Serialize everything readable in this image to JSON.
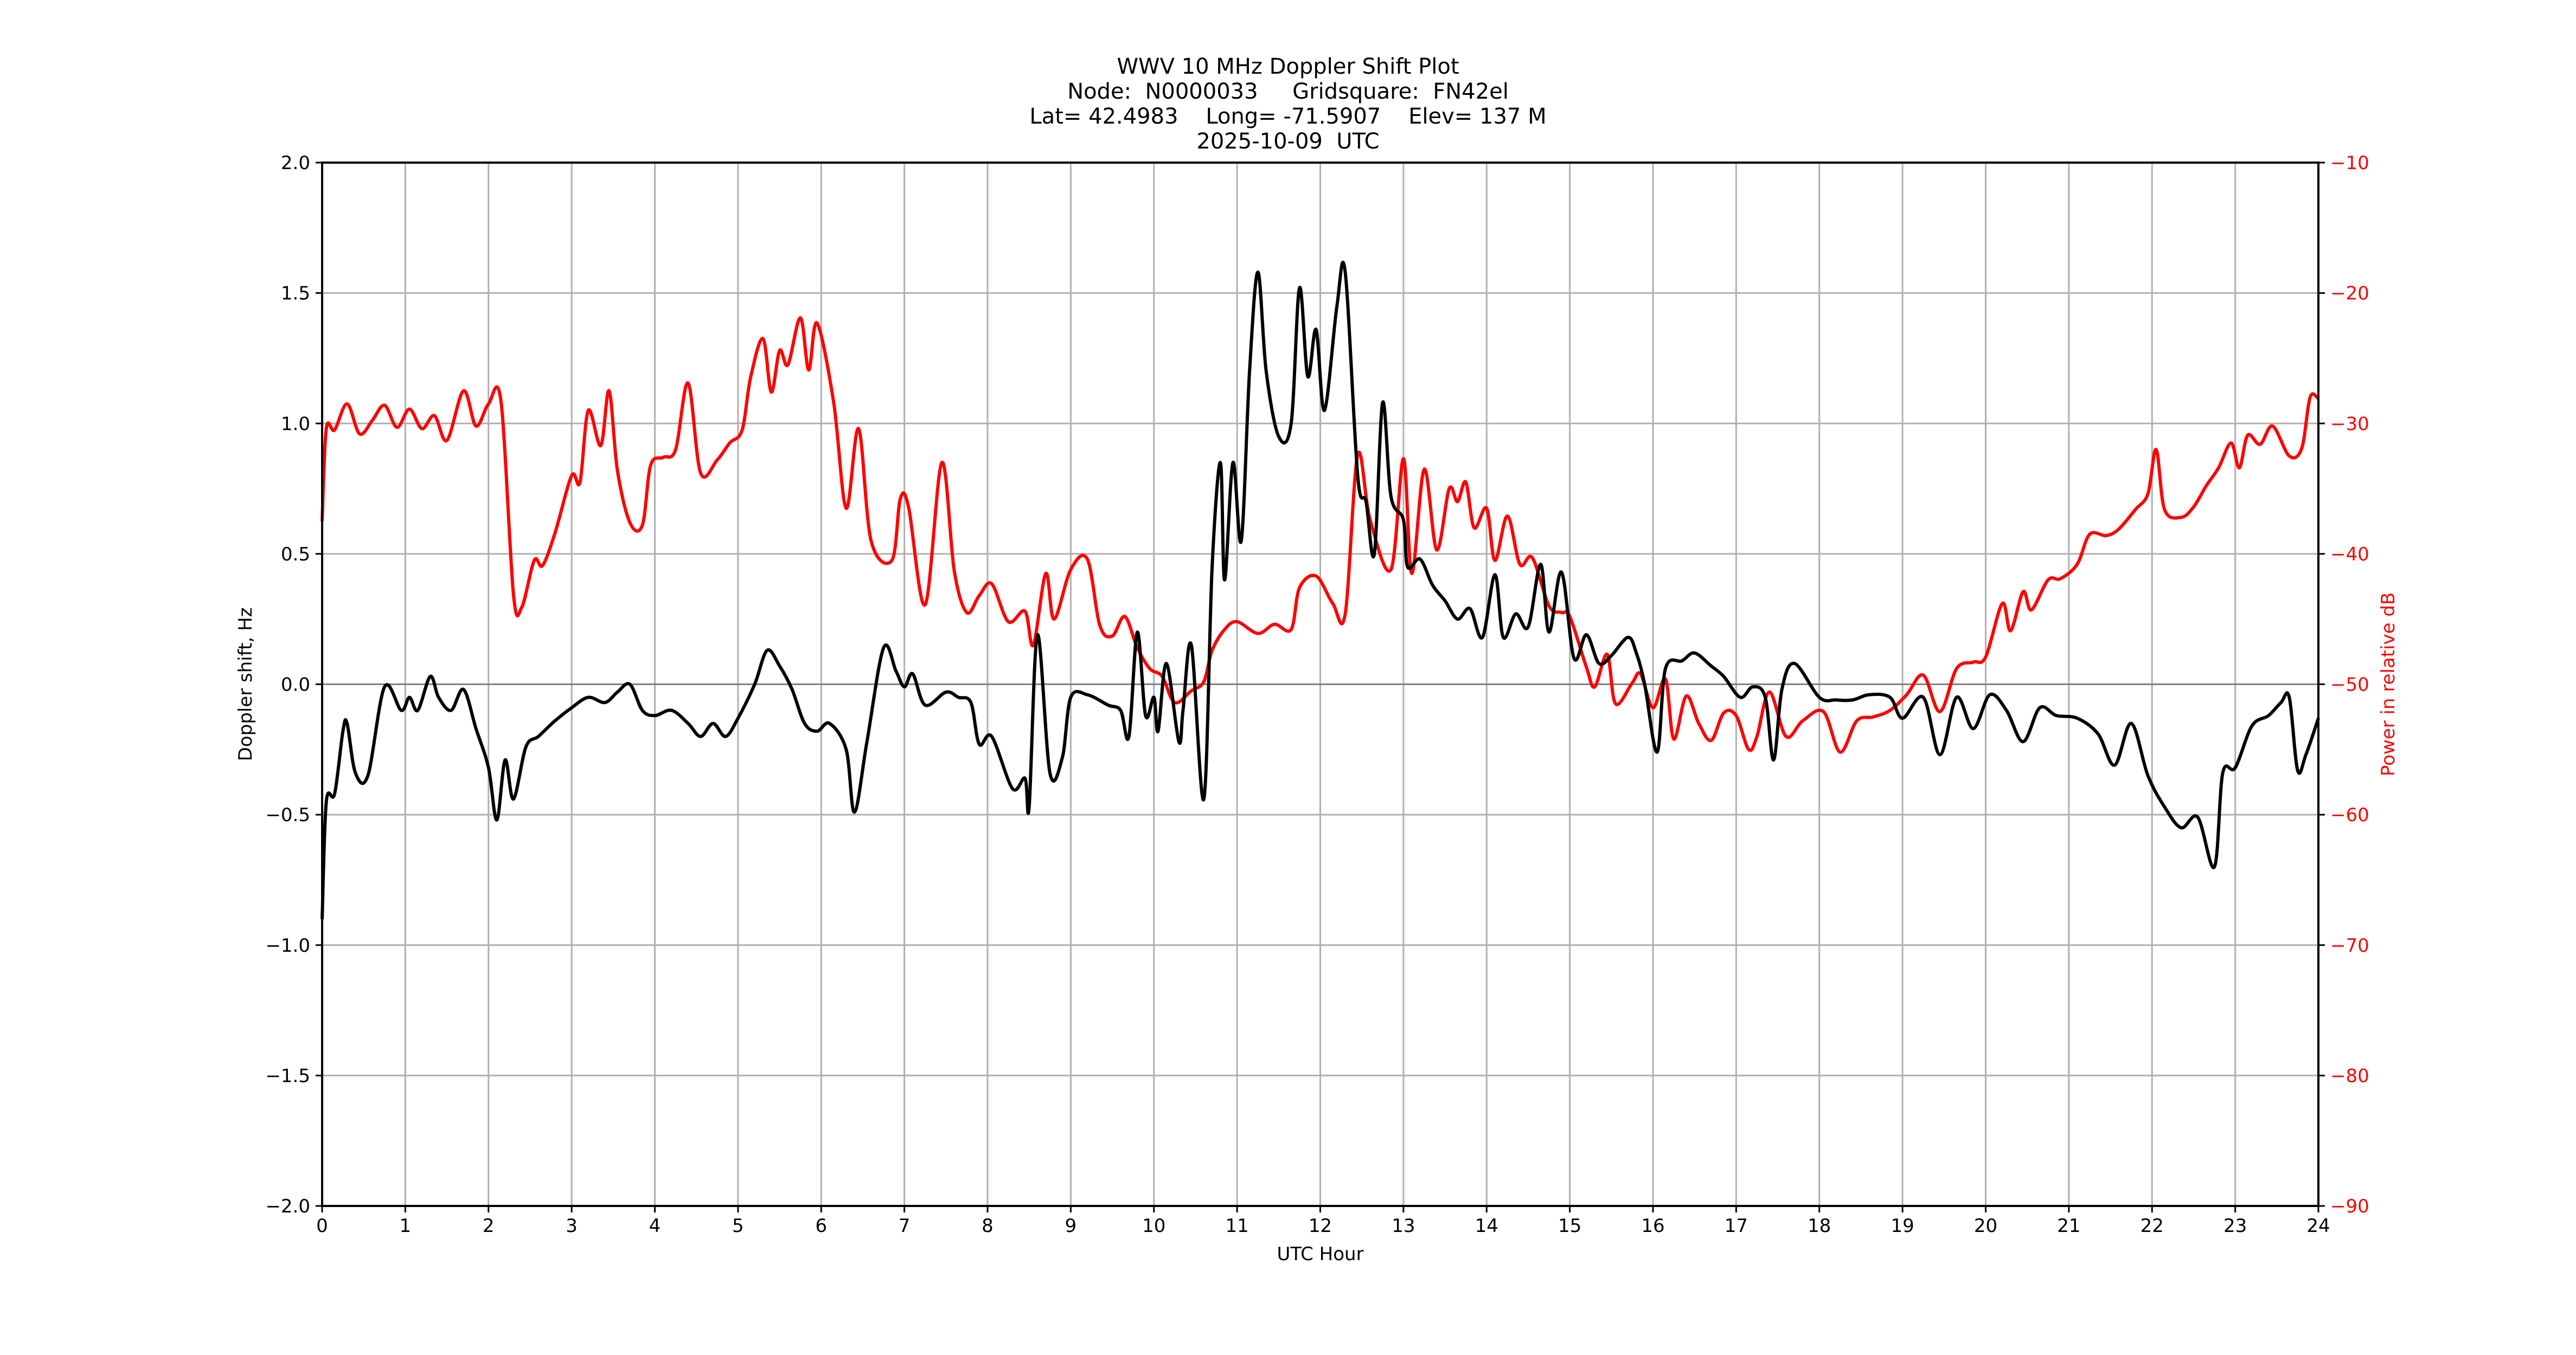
{
  "title": {
    "line1": "WWV 10 MHz Doppler Shift Plot",
    "line2": "Node:  N0000033     Gridsquare:  FN42el",
    "line3": "Lat= 42.4983    Long= -71.5907    Elev= 137 M",
    "line4": "2025-10-09  UTC"
  },
  "colors": {
    "doppler": "#000000",
    "power": "#ff0000",
    "grid": "#b0b0b0",
    "zero_line": "#808080",
    "axis": "#000000"
  },
  "chart_data": {
    "type": "line",
    "title": "WWV 10 MHz Doppler Shift Plot",
    "subtitle": [
      "Node:  N0000033     Gridsquare:  FN42el",
      "Lat= 42.4983    Long= -71.5907    Elev= 137 M",
      "2025-10-09  UTC"
    ],
    "xlabel": "UTC Hour",
    "ylabel": "Doppler shift, Hz",
    "ylabel_right": "Power in relative dB",
    "xlim": [
      0,
      24
    ],
    "ylim": [
      -2.0,
      2.0
    ],
    "ylim_right": [
      -90,
      -10
    ],
    "x_ticks": [
      "0",
      "1",
      "2",
      "3",
      "4",
      "5",
      "6",
      "7",
      "8",
      "9",
      "10",
      "11",
      "12",
      "13",
      "14",
      "15",
      "16",
      "17",
      "18",
      "19",
      "20",
      "21",
      "22",
      "23",
      "24"
    ],
    "y_ticks": [
      "2.0",
      "1.5",
      "1.0",
      "0.5",
      "0.0",
      "−0.5",
      "−1.0",
      "−1.5",
      "−2.0"
    ],
    "y_ticks_right": [
      "−10",
      "−20",
      "−30",
      "−40",
      "−50",
      "−60",
      "−70",
      "−80",
      "−90"
    ],
    "grid": true,
    "legend": "none",
    "series": [
      {
        "name": "Doppler shift (Hz)",
        "axis": "left",
        "color": "#000000",
        "x": [
          0,
          0.05,
          0.15,
          0.25,
          0.3,
          0.4,
          0.55,
          0.75,
          0.95,
          1.05,
          1.15,
          1.3,
          1.4,
          1.55,
          1.7,
          1.85,
          2.0,
          2.1,
          2.2,
          2.3,
          2.45,
          2.6,
          2.8,
          3.0,
          3.2,
          3.4,
          3.55,
          3.7,
          3.85,
          4.0,
          4.2,
          4.4,
          4.55,
          4.7,
          4.85,
          5.0,
          5.2,
          5.35,
          5.5,
          5.65,
          5.8,
          5.95,
          6.1,
          6.3,
          6.4,
          6.55,
          6.75,
          6.9,
          7.0,
          7.1,
          7.25,
          7.5,
          7.65,
          7.8,
          7.9,
          8.05,
          8.3,
          8.45,
          8.5,
          8.6,
          8.75,
          8.9,
          9.0,
          9.2,
          9.45,
          9.6,
          9.7,
          9.8,
          9.9,
          10.0,
          10.05,
          10.15,
          10.3,
          10.35,
          10.45,
          10.6,
          10.7,
          10.8,
          10.85,
          10.95,
          11.05,
          11.15,
          11.25,
          11.35,
          11.5,
          11.65,
          11.75,
          11.85,
          11.95,
          12.05,
          12.2,
          12.3,
          12.45,
          12.55,
          12.65,
          12.75,
          12.85,
          13.0,
          13.05,
          13.2,
          13.35,
          13.5,
          13.65,
          13.8,
          13.95,
          14.1,
          14.2,
          14.35,
          14.5,
          14.65,
          14.75,
          14.9,
          15.05,
          15.2,
          15.35,
          15.5,
          15.7,
          15.8,
          15.9,
          16.05,
          16.15,
          16.35,
          16.5,
          16.7,
          16.85,
          17.05,
          17.2,
          17.35,
          17.45,
          17.55,
          17.7,
          18.0,
          18.2,
          18.4,
          18.6,
          18.85,
          19.0,
          19.25,
          19.45,
          19.65,
          19.85,
          20.05,
          20.25,
          20.45,
          20.65,
          20.85,
          21.1,
          21.35,
          21.55,
          21.75,
          21.95,
          22.15,
          22.35,
          22.55,
          22.75,
          22.85,
          23.0,
          23.2,
          23.4,
          23.55,
          23.65,
          23.75,
          23.85,
          24.0
        ],
        "values": [
          -0.9,
          -0.45,
          -0.42,
          -0.18,
          -0.15,
          -0.34,
          -0.35,
          -0.01,
          -0.1,
          -0.05,
          -0.1,
          0.03,
          -0.05,
          -0.1,
          -0.02,
          -0.17,
          -0.32,
          -0.52,
          -0.29,
          -0.44,
          -0.24,
          -0.2,
          -0.14,
          -0.09,
          -0.05,
          -0.07,
          -0.03,
          0.0,
          -0.1,
          -0.12,
          -0.1,
          -0.15,
          -0.2,
          -0.15,
          -0.2,
          -0.13,
          0.0,
          0.13,
          0.07,
          -0.02,
          -0.15,
          -0.18,
          -0.15,
          -0.25,
          -0.49,
          -0.22,
          0.14,
          0.05,
          -0.01,
          0.04,
          -0.08,
          -0.03,
          -0.05,
          -0.07,
          -0.23,
          -0.2,
          -0.4,
          -0.36,
          -0.47,
          0.19,
          -0.34,
          -0.28,
          -0.05,
          -0.04,
          -0.08,
          -0.1,
          -0.2,
          0.2,
          -0.12,
          -0.05,
          -0.18,
          0.08,
          -0.22,
          -0.1,
          0.15,
          -0.44,
          0.45,
          0.85,
          0.4,
          0.85,
          0.55,
          1.2,
          1.58,
          1.2,
          0.95,
          1.0,
          1.52,
          1.18,
          1.36,
          1.05,
          1.45,
          1.58,
          0.8,
          0.7,
          0.5,
          1.08,
          0.72,
          0.63,
          0.45,
          0.48,
          0.38,
          0.32,
          0.25,
          0.29,
          0.18,
          0.42,
          0.18,
          0.27,
          0.22,
          0.46,
          0.2,
          0.43,
          0.1,
          0.19,
          0.08,
          0.11,
          0.18,
          0.12,
          0.0,
          -0.26,
          0.06,
          0.09,
          0.12,
          0.07,
          0.03,
          -0.05,
          -0.01,
          -0.05,
          -0.29,
          -0.02,
          0.08,
          -0.05,
          -0.06,
          -0.06,
          -0.04,
          -0.05,
          -0.13,
          -0.05,
          -0.27,
          -0.05,
          -0.17,
          -0.04,
          -0.1,
          -0.22,
          -0.09,
          -0.12,
          -0.13,
          -0.19,
          -0.31,
          -0.15,
          -0.35,
          -0.47,
          -0.55,
          -0.51,
          -0.7,
          -0.34,
          -0.32,
          -0.16,
          -0.12,
          -0.07,
          -0.05,
          -0.33,
          -0.27,
          -0.13
        ]
      },
      {
        "name": "Power (relative dB)",
        "axis": "right",
        "color": "#ff0000",
        "x": [
          0,
          0.05,
          0.15,
          0.3,
          0.45,
          0.6,
          0.75,
          0.9,
          1.05,
          1.2,
          1.35,
          1.5,
          1.7,
          1.85,
          2.0,
          2.15,
          2.3,
          2.4,
          2.55,
          2.65,
          2.8,
          3.0,
          3.1,
          3.2,
          3.35,
          3.45,
          3.55,
          3.7,
          3.85,
          3.95,
          4.1,
          4.25,
          4.4,
          4.55,
          4.75,
          4.9,
          5.05,
          5.15,
          5.3,
          5.4,
          5.5,
          5.6,
          5.75,
          5.85,
          5.95,
          6.15,
          6.3,
          6.45,
          6.6,
          6.85,
          6.95,
          7.05,
          7.25,
          7.45,
          7.6,
          7.75,
          7.9,
          8.05,
          8.25,
          8.45,
          8.55,
          8.7,
          8.8,
          9.0,
          9.2,
          9.35,
          9.5,
          9.65,
          9.8,
          9.95,
          10.1,
          10.25,
          10.45,
          10.6,
          10.7,
          10.85,
          11.0,
          11.25,
          11.45,
          11.65,
          11.75,
          11.95,
          12.15,
          12.3,
          12.45,
          12.6,
          12.85,
          13.0,
          13.1,
          13.25,
          13.4,
          13.55,
          13.65,
          13.75,
          13.85,
          14.0,
          14.1,
          14.25,
          14.4,
          14.55,
          14.75,
          14.9,
          15.0,
          15.2,
          15.3,
          15.45,
          15.55,
          15.75,
          15.85,
          16.0,
          16.15,
          16.25,
          16.4,
          16.55,
          16.7,
          16.85,
          17.0,
          17.15,
          17.25,
          17.4,
          17.6,
          17.8,
          18.05,
          18.25,
          18.45,
          18.65,
          18.85,
          19.05,
          19.25,
          19.45,
          19.65,
          19.85,
          20.0,
          20.2,
          20.3,
          20.45,
          20.55,
          20.75,
          20.9,
          21.1,
          21.25,
          21.45,
          21.6,
          21.8,
          21.95,
          22.05,
          22.15,
          22.35,
          22.5,
          22.65,
          22.8,
          22.95,
          23.05,
          23.15,
          23.3,
          23.45,
          23.65,
          23.8,
          23.9,
          24.0
        ],
        "values": [
          -37.5,
          -30.4,
          -30.5,
          -28.5,
          -30.8,
          -29.8,
          -28.6,
          -30.3,
          -28.9,
          -30.4,
          -29.4,
          -31.3,
          -27.5,
          -30.2,
          -28.5,
          -28.3,
          -43.1,
          -44.1,
          -40.5,
          -40.9,
          -38.4,
          -34.0,
          -34.5,
          -29.0,
          -31.7,
          -27.5,
          -33.6,
          -37.6,
          -37.8,
          -33.2,
          -32.6,
          -32.0,
          -26.9,
          -33.8,
          -32.8,
          -31.5,
          -30.5,
          -26.5,
          -23.5,
          -27.6,
          -24.4,
          -25.5,
          -21.9,
          -25.9,
          -22.3,
          -28.4,
          -36.5,
          -30.4,
          -39.0,
          -40.5,
          -35.8,
          -36.4,
          -43.9,
          -33.0,
          -41.3,
          -44.5,
          -43.2,
          -42.3,
          -45.2,
          -44.4,
          -47.0,
          -41.5,
          -45.0,
          -41.2,
          -40.4,
          -45.5,
          -46.3,
          -44.8,
          -47.2,
          -48.8,
          -49.4,
          -51.4,
          -50.5,
          -49.8,
          -47.4,
          -45.8,
          -45.2,
          -46.1,
          -45.4,
          -45.8,
          -42.6,
          -41.7,
          -43.8,
          -44.6,
          -32.4,
          -37.4,
          -41.2,
          -32.7,
          -41.5,
          -33.5,
          -39.7,
          -35.0,
          -36.0,
          -34.5,
          -38.0,
          -36.5,
          -40.5,
          -37.1,
          -40.8,
          -40.3,
          -44.0,
          -44.5,
          -44.8,
          -48.7,
          -50.2,
          -47.7,
          -51.5,
          -49.9,
          -49.2,
          -51.8,
          -49.6,
          -54.2,
          -50.9,
          -53.0,
          -54.3,
          -52.2,
          -52.4,
          -55.0,
          -54.0,
          -50.6,
          -54.0,
          -52.8,
          -52.1,
          -55.2,
          -52.8,
          -52.5,
          -52.0,
          -50.8,
          -49.3,
          -52.1,
          -48.8,
          -48.3,
          -47.9,
          -43.8,
          -45.9,
          -42.9,
          -44.3,
          -42.0,
          -41.9,
          -40.8,
          -38.5,
          -38.6,
          -38.1,
          -36.6,
          -35.4,
          -32.0,
          -36.6,
          -37.2,
          -36.4,
          -34.8,
          -33.4,
          -31.5,
          -33.4,
          -30.9,
          -31.6,
          -30.2,
          -32.5,
          -31.9,
          -28.0,
          -28.1
        ]
      }
    ]
  }
}
